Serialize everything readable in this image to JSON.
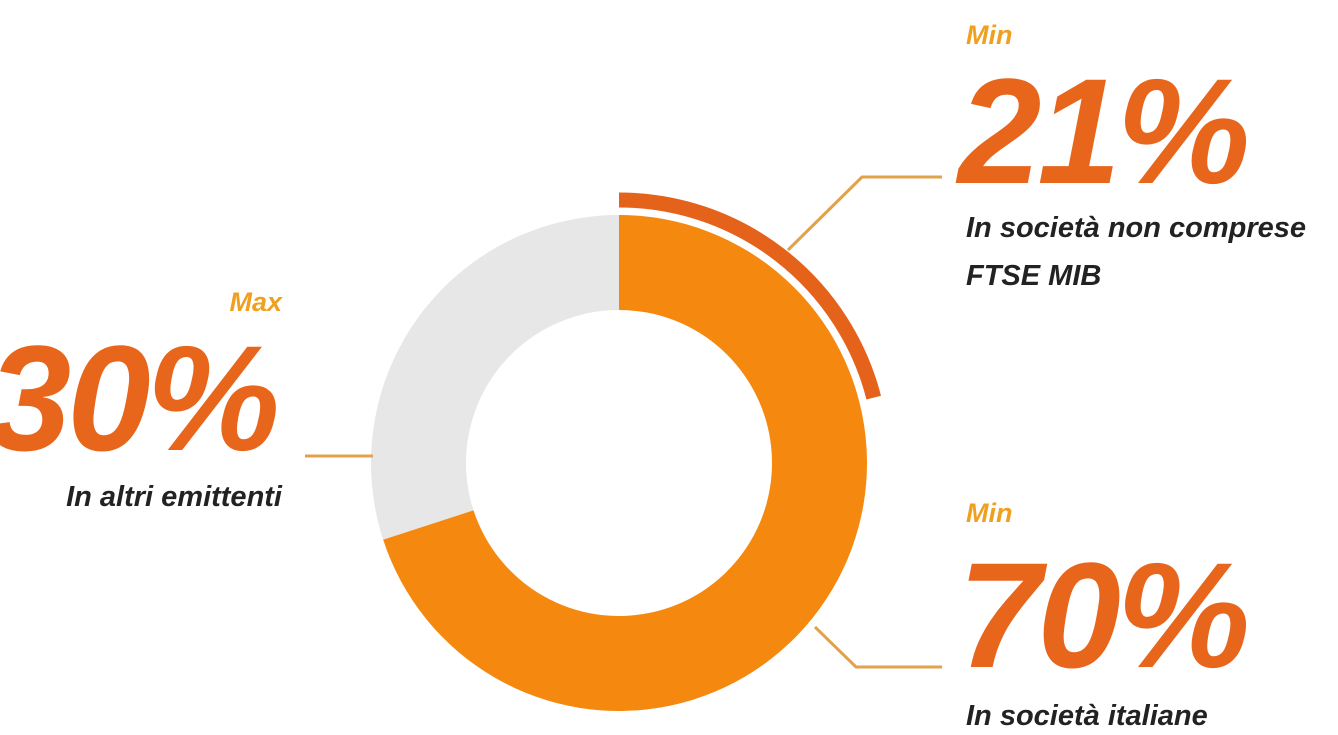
{
  "colors": {
    "main": "#f5890f",
    "highlight": "#e5621a",
    "rest": "#e7e7e7",
    "leader": "#e0a24a",
    "qualifier": "#f0a020",
    "value": "#e8651c",
    "description": "#222222"
  },
  "chart_data": {
    "type": "pie",
    "style": "donut",
    "slices": [
      {
        "label": "In società italiane",
        "value": 70,
        "qualifier": "Min",
        "display": "70%"
      },
      {
        "label": "In altri emittenti",
        "value": 30,
        "qualifier": "Max",
        "display": "30%"
      }
    ],
    "sub_slice": {
      "label_lines": [
        "In società non comprese",
        "FTSE MIB"
      ],
      "value": 21,
      "qualifier": "Min",
      "display": "21%",
      "part_of": "In società italiane"
    },
    "title": "",
    "legend": "none"
  }
}
